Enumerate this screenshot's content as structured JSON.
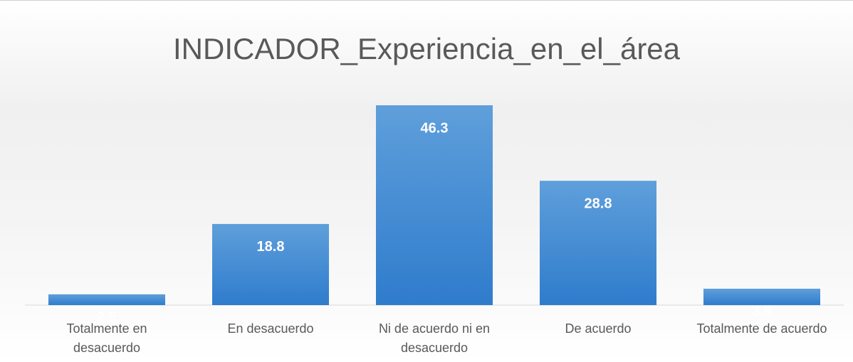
{
  "chart_data": {
    "type": "bar",
    "title": "INDICADOR_Experiencia_en_el_área",
    "categories": [
      "Totalmente en desacuerdo",
      "En desacuerdo",
      "Ni de acuerdo ni en desacuerdo",
      "De acuerdo",
      "Totalmente de acuerdo"
    ],
    "values": [
      2.5,
      18.8,
      46.3,
      28.8,
      3.8
    ],
    "color": "#4a8fd6"
  }
}
